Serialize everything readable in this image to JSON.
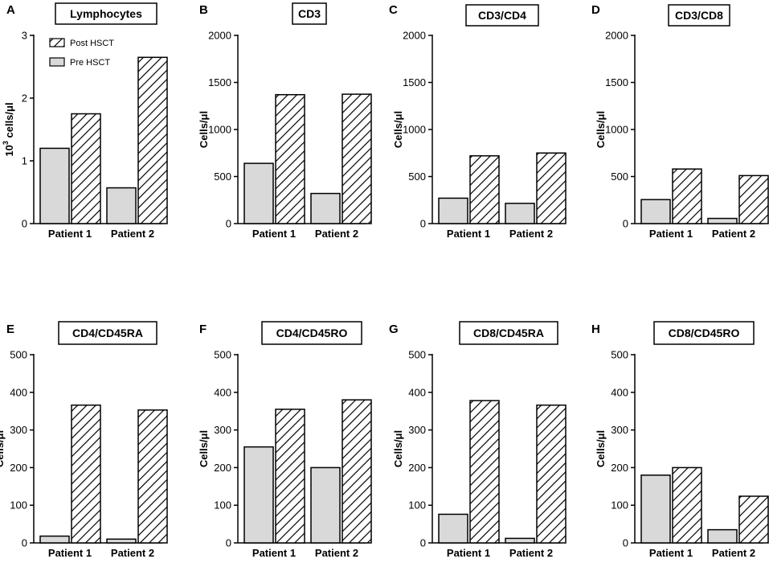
{
  "figure": {
    "series_names": [
      "Pre HSCT",
      "Post HSCT"
    ]
  },
  "chart_data": [
    {
      "panel": "A",
      "type": "bar",
      "title": "Lymphocytes",
      "xlabel": "",
      "ylabel": "10³ cells/μl",
      "ylabel_prefix": "10",
      "ylabel_sup": "3",
      "ylabel_suffix": " cells/μl",
      "ylim": [
        0,
        3
      ],
      "yticks": [
        0,
        1,
        2,
        3
      ],
      "yticklabels": [
        "0",
        "1",
        "2",
        "3"
      ],
      "categories": [
        "Patient 1",
        "Patient 2"
      ],
      "legend": [
        "Post HSCT",
        "Pre HSCT"
      ],
      "series": [
        {
          "name": "Pre HSCT",
          "values": [
            1.2,
            0.57
          ]
        },
        {
          "name": "Post HSCT",
          "values": [
            1.75,
            2.65
          ]
        }
      ]
    },
    {
      "panel": "B",
      "type": "bar",
      "title": "CD3",
      "xlabel": "",
      "ylabel": "Cells/μl",
      "ylim": [
        0,
        2000
      ],
      "yticks": [
        0,
        500,
        1000,
        1500,
        2000
      ],
      "yticklabels": [
        "0",
        "500",
        "1000",
        "1500",
        "2000"
      ],
      "categories": [
        "Patient 1",
        "Patient 2"
      ],
      "series": [
        {
          "name": "Pre HSCT",
          "values": [
            640,
            320
          ]
        },
        {
          "name": "Post HSCT",
          "values": [
            1370,
            1375
          ]
        }
      ]
    },
    {
      "panel": "C",
      "type": "bar",
      "title": "CD3/CD4",
      "xlabel": "",
      "ylabel": "Cells/μl",
      "ylim": [
        0,
        2000
      ],
      "yticks": [
        0,
        500,
        1000,
        1500,
        2000
      ],
      "yticklabels": [
        "0",
        "500",
        "1000",
        "1500",
        "2000"
      ],
      "categories": [
        "Patient 1",
        "Patient 2"
      ],
      "series": [
        {
          "name": "Pre HSCT",
          "values": [
            270,
            215
          ]
        },
        {
          "name": "Post HSCT",
          "values": [
            720,
            750
          ]
        }
      ]
    },
    {
      "panel": "D",
      "type": "bar",
      "title": "CD3/CD8",
      "xlabel": "",
      "ylabel": "Cells/μl",
      "ylim": [
        0,
        2000
      ],
      "yticks": [
        0,
        500,
        1000,
        1500,
        2000
      ],
      "yticklabels": [
        "0",
        "500",
        "1000",
        "1500",
        "2000"
      ],
      "categories": [
        "Patient 1",
        "Patient 2"
      ],
      "series": [
        {
          "name": "Pre HSCT",
          "values": [
            255,
            55
          ]
        },
        {
          "name": "Post HSCT",
          "values": [
            580,
            510
          ]
        }
      ]
    },
    {
      "panel": "E",
      "type": "bar",
      "title": "CD4/CD45RA",
      "xlabel": "",
      "ylabel": "Cells/μl",
      "ylim": [
        0,
        500
      ],
      "yticks": [
        0,
        100,
        200,
        300,
        400,
        500
      ],
      "yticklabels": [
        "0",
        "100",
        "200",
        "300",
        "400",
        "500"
      ],
      "categories": [
        "Patient 1",
        "Patient 2"
      ],
      "series": [
        {
          "name": "Pre HSCT",
          "values": [
            18,
            10
          ]
        },
        {
          "name": "Post HSCT",
          "values": [
            366,
            353
          ]
        }
      ]
    },
    {
      "panel": "F",
      "type": "bar",
      "title": "CD4/CD45RO",
      "xlabel": "",
      "ylabel": "Cells/μl",
      "ylim": [
        0,
        500
      ],
      "yticks": [
        0,
        100,
        200,
        300,
        400,
        500
      ],
      "yticklabels": [
        "0",
        "100",
        "200",
        "300",
        "400",
        "500"
      ],
      "categories": [
        "Patient 1",
        "Patient 2"
      ],
      "series": [
        {
          "name": "Pre HSCT",
          "values": [
            255,
            200
          ]
        },
        {
          "name": "Post HSCT",
          "values": [
            355,
            380
          ]
        }
      ]
    },
    {
      "panel": "G",
      "type": "bar",
      "title": "CD8/CD45RA",
      "xlabel": "",
      "ylabel": "Cells/μl",
      "ylim": [
        0,
        500
      ],
      "yticks": [
        0,
        100,
        200,
        300,
        400,
        500
      ],
      "yticklabels": [
        "0",
        "100",
        "200",
        "300",
        "400",
        "500"
      ],
      "categories": [
        "Patient 1",
        "Patient 2"
      ],
      "series": [
        {
          "name": "Pre HSCT",
          "values": [
            76,
            12
          ]
        },
        {
          "name": "Post HSCT",
          "values": [
            378,
            366
          ]
        }
      ]
    },
    {
      "panel": "H",
      "type": "bar",
      "title": "CD8/CD45RO",
      "xlabel": "",
      "ylabel": "Cells/μl",
      "ylim": [
        0,
        500
      ],
      "yticks": [
        0,
        100,
        200,
        300,
        400,
        500
      ],
      "yticklabels": [
        "0",
        "100",
        "200",
        "300",
        "400",
        "500"
      ],
      "categories": [
        "Patient 1",
        "Patient 2"
      ],
      "series": [
        {
          "name": "Pre HSCT",
          "values": [
            180,
            35
          ]
        },
        {
          "name": "Post HSCT",
          "values": [
            200,
            124
          ]
        }
      ]
    }
  ],
  "colors": {
    "pre_fill": "#d9d9d9",
    "post_fill": "#ffffff",
    "stroke": "#000000",
    "hatch": "#000000"
  }
}
